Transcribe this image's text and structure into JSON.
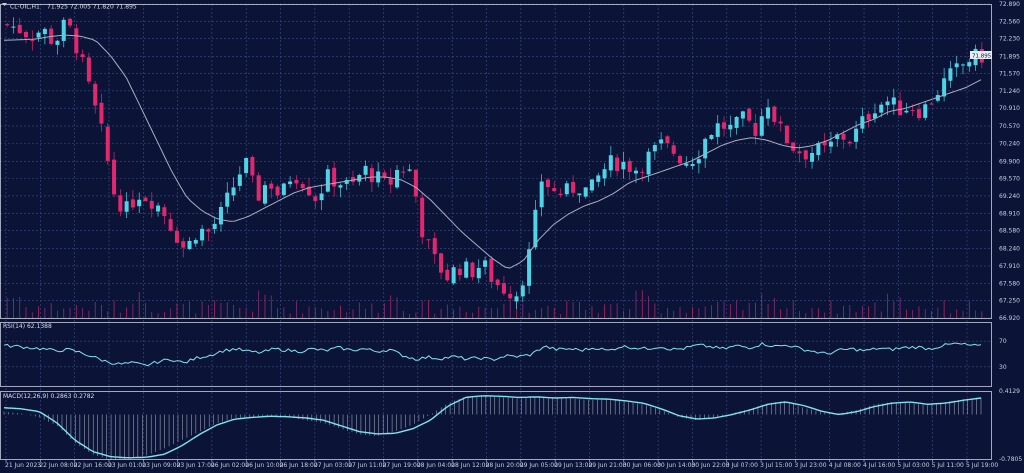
{
  "header": {
    "symbol": "CL-OIL,H1",
    "ohlc": "71.925 72.005 71.820 71.895"
  },
  "indicators": {
    "rsi_label": "RSI(14) 62.1388",
    "macd_label": "MACD(12,26,9) 0.2863 0.2782"
  },
  "colors": {
    "background": "#0b1437",
    "grid": "#3a4f86",
    "bull": "#4fd3e6",
    "bear": "#e2276f",
    "ma": "#a9adc0",
    "rsi": "#7fe3f0",
    "macd": "#7fe3f0",
    "price_tag_bg": "#e8ecf5"
  },
  "chart_data": [
    {
      "type": "candlestick",
      "title": "CL-OIL,H1",
      "x_labels": [
        "21 Jun 2023",
        "22 Jun 08:00",
        "22 Jun 16:00",
        "23 Jun 01:00",
        "23 Jun 09:00",
        "23 Jun 17:00",
        "26 Jun 02:00",
        "26 Jun 10:00",
        "26 Jun 18:00",
        "27 Jun 03:00",
        "27 Jun 11:00",
        "27 Jun 19:00",
        "28 Jun 04:00",
        "28 Jun 12:00",
        "28 Jun 20:00",
        "29 Jun 05:00",
        "29 Jun 13:00",
        "29 Jun 21:00",
        "30 Jun 06:00",
        "30 Jun 14:00",
        "30 Jun 22:00",
        "3 Jul 07:00",
        "3 Jul 15:00",
        "3 Jul 23:00",
        "4 Jul 08:00",
        "4 Jul 16:00",
        "5 Jul 03:00",
        "5 Jul 11:00",
        "5 Jul 19:00"
      ],
      "y_ticks": [
        "72.890",
        "72.560",
        "72.230",
        "71.895",
        "71.570",
        "71.240",
        "70.910",
        "70.570",
        "70.240",
        "69.900",
        "69.570",
        "69.240",
        "68.910",
        "68.580",
        "68.240",
        "67.910",
        "67.580",
        "67.250",
        "66.920"
      ],
      "ylim": [
        66.92,
        72.89
      ],
      "current_price": "71.895",
      "close_path": [
        72.5,
        72.42,
        72.3,
        72.4,
        72.15,
        72.55,
        72.0,
        71.2,
        70.4,
        69.3,
        68.95,
        69.3,
        69.2,
        69.0,
        68.6,
        68.2,
        68.6,
        68.55,
        68.9,
        69.4,
        69.9,
        69.2,
        69.55,
        69.2,
        69.7,
        69.5,
        69.2,
        69.6,
        69.5,
        69.4,
        69.75,
        69.6,
        69.4,
        69.8,
        69.7,
        68.5,
        68.0,
        67.7,
        67.9,
        67.8,
        67.95,
        67.6,
        67.45,
        67.4,
        68.2,
        69.6,
        69.3,
        69.3,
        69.45,
        69.3,
        69.7,
        69.9,
        69.85,
        69.75,
        70.0,
        70.2,
        70.1,
        69.9,
        70.0,
        70.45,
        70.6,
        70.5,
        70.7,
        70.5,
        71.05,
        70.5,
        70.2,
        70.05,
        70.1,
        70.1,
        70.4,
        70.3,
        70.65,
        70.95,
        71.05,
        70.9,
        70.95,
        70.85,
        71.15,
        71.45,
        71.65,
        71.85,
        71.9
      ],
      "ma_path": [
        72.2,
        72.21,
        72.22,
        72.27,
        72.3,
        72.28,
        72.2,
        71.9,
        71.5,
        70.9,
        70.3,
        69.7,
        69.2,
        68.95,
        68.8,
        68.75,
        68.85,
        69.0,
        69.15,
        69.3,
        69.4,
        69.45,
        69.5,
        69.55,
        69.6,
        69.6,
        69.55,
        69.4,
        69.15,
        68.85,
        68.55,
        68.3,
        68.05,
        67.85,
        68.0,
        68.4,
        68.7,
        68.9,
        69.05,
        69.15,
        69.3,
        69.5,
        69.6,
        69.7,
        69.8,
        69.9,
        70.05,
        70.2,
        70.3,
        70.35,
        70.3,
        70.2,
        70.15,
        70.2,
        70.3,
        70.45,
        70.6,
        70.7,
        70.85,
        70.9,
        71.0,
        71.1,
        71.2,
        71.3,
        71.45
      ]
    },
    {
      "type": "line",
      "title": "RSI(14) 62.1388",
      "y_ticks": [
        "70",
        "30"
      ],
      "ylim": [
        0,
        100
      ],
      "values": [
        63,
        62,
        60,
        58,
        55,
        57,
        52,
        45,
        38,
        34,
        36,
        32,
        38,
        42,
        36,
        44,
        48,
        55,
        58,
        54,
        52,
        58,
        56,
        54,
        58,
        55,
        60,
        56,
        58,
        54,
        57,
        48,
        42,
        45,
        43,
        46,
        42,
        44,
        41,
        47,
        46,
        49,
        62,
        57,
        58,
        56,
        60,
        55,
        62,
        60,
        58,
        62,
        57,
        59,
        64,
        61,
        58,
        63,
        60,
        66,
        62,
        64,
        58,
        54,
        50,
        56,
        58,
        55,
        59,
        57,
        60,
        61,
        58,
        63,
        66,
        64,
        62
      ],
      "type_note": "RSI"
    },
    {
      "type": "line_histogram",
      "title": "MACD(12,26,9) 0.2863 0.2782",
      "y_ticks": [
        "0.4129",
        "-0.7805"
      ],
      "ylim": [
        -0.7805,
        0.4129
      ],
      "line_values": [
        0.12,
        0.1,
        0.05,
        -0.15,
        -0.45,
        -0.65,
        -0.74,
        -0.76,
        -0.75,
        -0.7,
        -0.55,
        -0.35,
        -0.18,
        -0.08,
        -0.05,
        -0.03,
        -0.04,
        -0.06,
        -0.1,
        -0.2,
        -0.3,
        -0.34,
        -0.33,
        -0.25,
        -0.1,
        0.15,
        0.3,
        0.33,
        0.32,
        0.3,
        0.31,
        0.29,
        0.3,
        0.28,
        0.27,
        0.24,
        0.2,
        0.1,
        -0.02,
        -0.08,
        -0.06,
        0.0,
        0.08,
        0.18,
        0.22,
        0.16,
        0.06,
        0.0,
        0.05,
        0.14,
        0.2,
        0.22,
        0.18,
        0.2,
        0.25,
        0.29
      ],
      "histogram": [
        0.05,
        0.02,
        -0.05,
        -0.2,
        -0.5,
        -0.7,
        -0.8,
        -0.78,
        -0.72,
        -0.6,
        -0.45,
        -0.3,
        -0.15,
        -0.06,
        -0.05,
        -0.02,
        -0.05,
        -0.1,
        -0.15,
        -0.25,
        -0.35,
        -0.38,
        -0.3,
        -0.18,
        0.0,
        0.2,
        0.32,
        0.34,
        0.3,
        0.28,
        0.32,
        0.3,
        0.28,
        0.25,
        0.28,
        0.22,
        0.18,
        0.08,
        -0.05,
        -0.1,
        -0.05,
        0.02,
        0.1,
        0.2,
        0.24,
        0.12,
        0.04,
        0.02,
        0.08,
        0.18,
        0.22,
        0.2,
        0.16,
        0.22,
        0.27,
        0.3
      ]
    }
  ]
}
